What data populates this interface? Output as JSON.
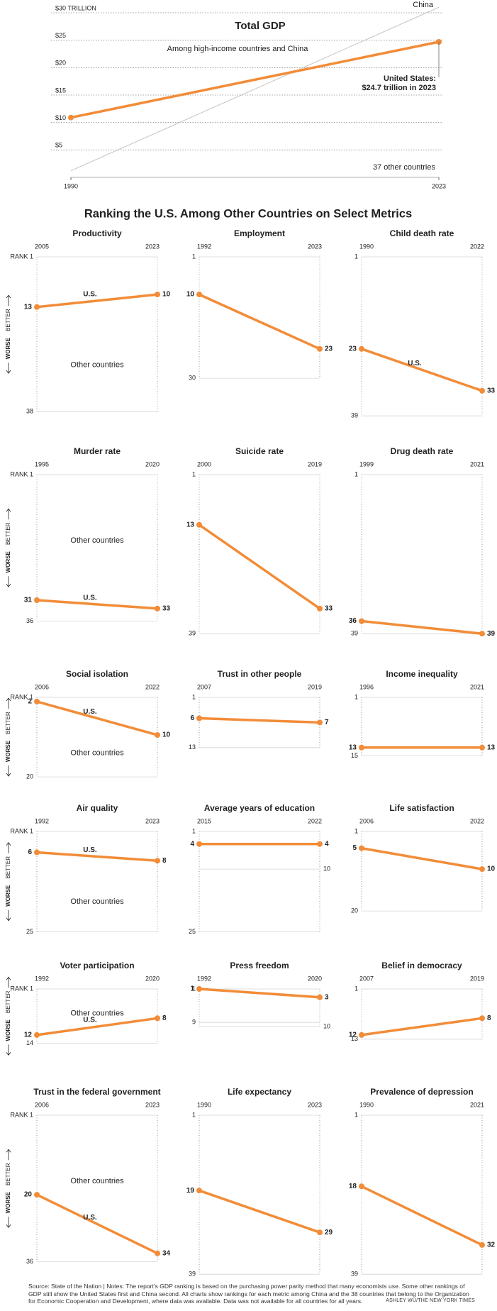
{
  "section_title": "Ranking the U.S. Among Other Countries on Select Metrics",
  "axis_note": {
    "better": "BETTER",
    "worse": "WORSE"
  },
  "footer": {
    "source": "Source: State of the Nation | Notes: The report's GDP ranking is based on the purchasing power parity method that many economists use. Some other rankings of GDP still show the United States first and China second. All charts show rankings for each metric among China and the 38 countries that belong to the Organization for Economic Cooperation and Development, where data was available. Data was not available for all countries for all years.",
    "credit": "ASHLEY WU/THE NEW YORK TIMES"
  },
  "chart_data": [
    {
      "type": "line",
      "title": "Total GDP",
      "subtitle": "Among high-income countries and China",
      "x": [
        1990,
        2023
      ],
      "xlim": [
        1990,
        2023
      ],
      "xticks": [
        1990,
        2023
      ],
      "ylim": [
        0,
        30
      ],
      "yticks": [
        {
          "value": 5,
          "label": "$5"
        },
        {
          "value": 10,
          "label": "$10"
        },
        {
          "value": 15,
          "label": "$15"
        },
        {
          "value": 20,
          "label": "$20"
        },
        {
          "value": 25,
          "label": "$25"
        },
        {
          "value": 30,
          "label": "$30 TRILLION"
        }
      ],
      "grid": true,
      "series": [
        {
          "name": "China",
          "color": "#c4c4c4",
          "values": [
            1.2,
            31
          ]
        },
        {
          "name": "United States:",
          "color": "#f28c38",
          "values": [
            10.9,
            24.7
          ]
        }
      ],
      "annotation": "$24.7 trillion in 2023",
      "others_label": "37 other countries"
    },
    {
      "type": "slope",
      "title": "Productivity",
      "categories": [
        "2005",
        "2023"
      ],
      "ylim": [
        1,
        38
      ],
      "yticks": [
        {
          "value": 1,
          "label": "RANK 1"
        },
        38
      ],
      "series": [
        {
          "name": "U.S.",
          "color": "#f28c38",
          "values": [
            13,
            10
          ]
        }
      ],
      "annotation": "Other countries"
    },
    {
      "type": "slope",
      "title": "Employment",
      "categories": [
        "1992",
        "2023"
      ],
      "ylim": [
        1,
        30
      ],
      "yticks": [
        1,
        30
      ],
      "series": [
        {
          "color": "#f28c38",
          "values": [
            10,
            23
          ]
        }
      ]
    },
    {
      "type": "slope",
      "title": "Child death rate",
      "categories": [
        "1990",
        "2022"
      ],
      "ylim": [
        1,
        39
      ],
      "yticks": [
        1,
        39
      ],
      "series": [
        {
          "name": "U.S.",
          "color": "#f28c38",
          "values": [
            23,
            33
          ]
        }
      ]
    },
    {
      "type": "slope",
      "title": "Murder rate",
      "categories": [
        "1995",
        "2020"
      ],
      "ylim": [
        1,
        36
      ],
      "yticks": [
        {
          "value": 1,
          "label": "RANK 1"
        },
        36
      ],
      "series": [
        {
          "name": "U.S.",
          "color": "#f28c38",
          "values": [
            31,
            33
          ]
        }
      ],
      "annotation": "Other countries"
    },
    {
      "type": "slope",
      "title": "Suicide rate",
      "categories": [
        "2000",
        "2019"
      ],
      "ylim": [
        1,
        39
      ],
      "yticks": [
        1,
        39
      ],
      "series": [
        {
          "color": "#f28c38",
          "values": [
            13,
            33
          ]
        }
      ]
    },
    {
      "type": "slope",
      "title": "Drug death rate",
      "categories": [
        "1999",
        "2021"
      ],
      "ylim": [
        1,
        39
      ],
      "yticks": [
        1,
        39
      ],
      "series": [
        {
          "color": "#f28c38",
          "values": [
            36,
            39
          ]
        }
      ]
    },
    {
      "type": "slope",
      "title": "Social isolation",
      "categories": [
        "2006",
        "2022"
      ],
      "ylim": [
        1,
        20
      ],
      "yticks": [
        {
          "value": 1,
          "label": "RANK 1"
        },
        20
      ],
      "series": [
        {
          "name": "U.S.",
          "color": "#f28c38",
          "values": [
            2,
            10
          ]
        }
      ],
      "annotation": "Other countries"
    },
    {
      "type": "slope",
      "title": "Trust in other people",
      "categories": [
        "2007",
        "2019"
      ],
      "ylim": [
        1,
        13
      ],
      "yticks": [
        1,
        13
      ],
      "series": [
        {
          "color": "#f28c38",
          "values": [
            6,
            7
          ]
        }
      ]
    },
    {
      "type": "slope",
      "title": "Income inequality",
      "categories": [
        "1996",
        "2021"
      ],
      "ylim": [
        1,
        15
      ],
      "yticks": [
        1,
        15
      ],
      "series": [
        {
          "color": "#f28c38",
          "values": [
            13,
            13
          ]
        }
      ]
    },
    {
      "type": "slope",
      "title": "Air quality",
      "categories": [
        "1992",
        "2023"
      ],
      "ylim": [
        1,
        25
      ],
      "yticks": [
        {
          "value": 1,
          "label": "RANK 1"
        },
        25
      ],
      "series": [
        {
          "name": "U.S.",
          "color": "#f28c38",
          "values": [
            6,
            8
          ]
        }
      ],
      "annotation": "Other countries"
    },
    {
      "type": "slope",
      "title": "Average years of education",
      "categories": [
        "2015",
        "2022"
      ],
      "ylim": [
        1,
        25
      ],
      "yticks": [
        1,
        25
      ],
      "right_ticks": [
        10
      ],
      "series": [
        {
          "color": "#f28c38",
          "values": [
            4,
            4
          ]
        }
      ]
    },
    {
      "type": "slope",
      "title": "Life satisfaction",
      "categories": [
        "2006",
        "2022"
      ],
      "ylim": [
        1,
        20
      ],
      "yticks": [
        1,
        20
      ],
      "series": [
        {
          "color": "#f28c38",
          "values": [
            5,
            10
          ]
        }
      ]
    },
    {
      "type": "slope",
      "title": "Voter participation",
      "categories": [
        "1992",
        "2020"
      ],
      "ylim": [
        1,
        14
      ],
      "yticks": [
        {
          "value": 1,
          "label": "RANK 1"
        },
        14
      ],
      "series": [
        {
          "name": "U.S.",
          "color": "#f28c38",
          "values": [
            12,
            8
          ]
        }
      ],
      "annotation": "Other countries"
    },
    {
      "type": "slope",
      "title": "Press freedom",
      "categories": [
        "1992",
        "2020"
      ],
      "ylim": [
        1,
        10
      ],
      "yticks": [
        1,
        9
      ],
      "right_ticks": [
        10
      ],
      "series": [
        {
          "color": "#f28c38",
          "values": [
            1,
            3
          ]
        }
      ]
    },
    {
      "type": "slope",
      "title": "Belief in democracy",
      "categories": [
        "2007",
        "2019"
      ],
      "ylim": [
        1,
        13
      ],
      "yticks": [
        1,
        13
      ],
      "series": [
        {
          "color": "#f28c38",
          "values": [
            12,
            8
          ]
        }
      ]
    },
    {
      "type": "slope",
      "title": "Trust in the federal government",
      "categories": [
        "2006",
        "2023"
      ],
      "ylim": [
        1,
        36
      ],
      "yticks": [
        {
          "value": 1,
          "label": "RANK 1"
        },
        36
      ],
      "series": [
        {
          "name": "U.S.",
          "color": "#f28c38",
          "values": [
            20,
            34
          ]
        }
      ],
      "annotation": "Other countries"
    },
    {
      "type": "slope",
      "title": "Life expectancy",
      "categories": [
        "1990",
        "2023"
      ],
      "ylim": [
        1,
        39
      ],
      "yticks": [
        1,
        39
      ],
      "series": [
        {
          "color": "#f28c38",
          "values": [
            19,
            29
          ]
        }
      ]
    },
    {
      "type": "slope",
      "title": "Prevalence of depression",
      "categories": [
        "1990",
        "2021"
      ],
      "ylim": [
        1,
        39
      ],
      "yticks": [
        1,
        39
      ],
      "series": [
        {
          "color": "#f28c38",
          "values": [
            18,
            32
          ]
        }
      ]
    }
  ]
}
